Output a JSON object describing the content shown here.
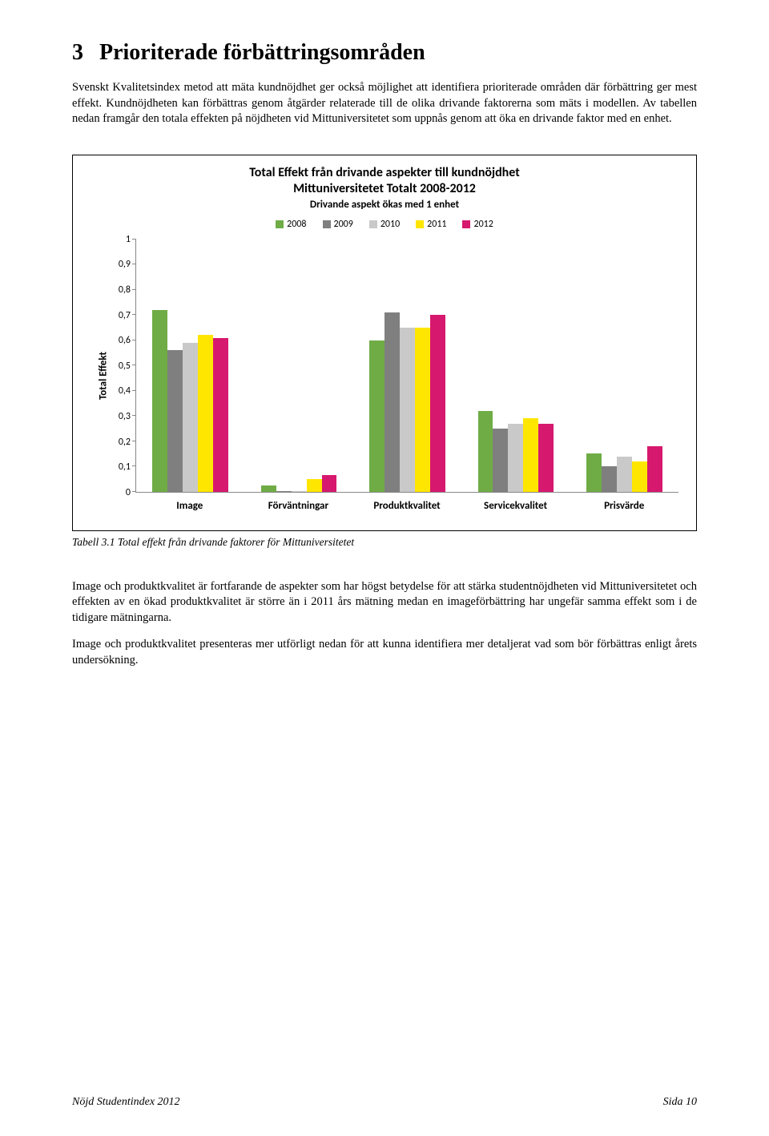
{
  "section": {
    "number": "3",
    "title": "Prioriterade förbättringsområden"
  },
  "para1": "Svenskt Kvalitetsindex metod att mäta kundnöjdhet ger också möjlighet att identifiera prioriterade områden där förbättring ger mest effekt. Kundnöjdheten kan förbättras genom åtgärder relaterade till de olika drivande faktorerna som mäts i modellen. Av tabellen nedan framgår den totala effekten på nöjdheten vid Mittuniversitetet som uppnås genom att öka en drivande faktor med en enhet.",
  "chart": {
    "type": "bar",
    "title1": "Total Effekt från drivande aspekter till kundnöjdhet",
    "title2": "Mittuniversitetet Totalt 2008-2012",
    "subtitle": "Drivande aspekt ökas med 1 enhet",
    "ylabel": "Total Effekt",
    "ylim": [
      0,
      1
    ],
    "ytick_step": 0.1,
    "yticks": [
      "0",
      "0,1",
      "0,2",
      "0,3",
      "0,4",
      "0,5",
      "0,6",
      "0,7",
      "0,8",
      "0,9",
      "1"
    ],
    "categories": [
      "Image",
      "Förväntningar",
      "Produktkvalitet",
      "Servicekvalitet",
      "Prisvärde"
    ],
    "series": [
      {
        "name": "2008",
        "color": "#6fac46",
        "values": [
          0.72,
          0.025,
          0.6,
          0.32,
          0.15
        ]
      },
      {
        "name": "2009",
        "color": "#7f7f7f",
        "values": [
          0.56,
          0.003,
          0.71,
          0.25,
          0.1
        ]
      },
      {
        "name": "2010",
        "color": "#c9c9c9",
        "values": [
          0.59,
          0.003,
          0.65,
          0.27,
          0.14
        ]
      },
      {
        "name": "2011",
        "color": "#ffe600",
        "values": [
          0.62,
          0.05,
          0.65,
          0.29,
          0.12
        ]
      },
      {
        "name": "2012",
        "color": "#d6186e",
        "values": [
          0.61,
          0.065,
          0.7,
          0.27,
          0.18
        ]
      }
    ],
    "bar_width": 0.14
  },
  "caption": "Tabell 3.1 Total effekt från drivande faktorer för Mittuniversitetet",
  "para2": "Image och produktkvalitet är fortfarande de aspekter som har högst betydelse för att stärka studentnöjdheten vid Mittuniversitetet och effekten av en ökad produktkvalitet är större än i 2011 års mätning medan en imageförbättring har ungefär samma effekt som i de tidigare mätningarna.",
  "para3": "Image och produktkvalitet presenteras mer utförligt nedan för att kunna identifiera mer detaljerat vad som bör förbättras enligt årets undersökning.",
  "footer": {
    "left": "Nöjd Studentindex 2012",
    "right": "Sida 10"
  }
}
